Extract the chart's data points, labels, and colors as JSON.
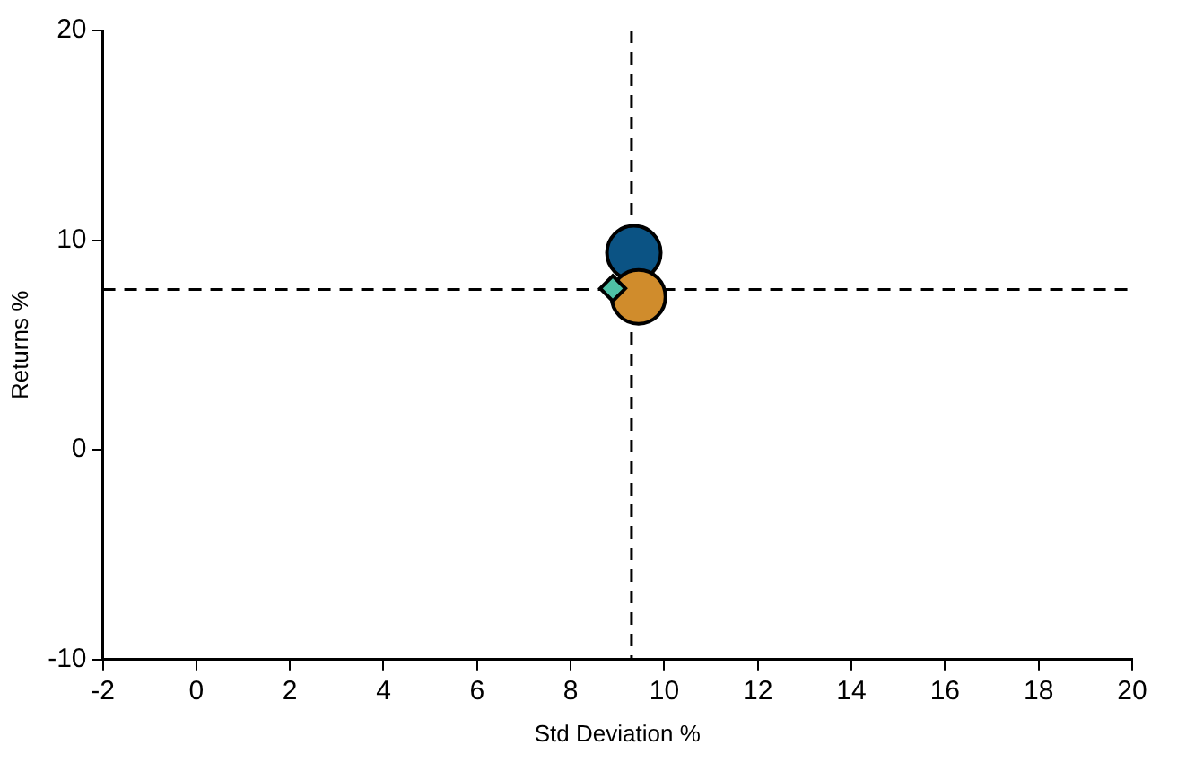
{
  "chart_data": {
    "type": "scatter",
    "xlabel": "Std Deviation %",
    "ylabel": "Returns %",
    "xlim": [
      -2,
      20
    ],
    "xticks": [
      -2,
      0,
      2,
      4,
      6,
      8,
      10,
      12,
      14,
      16,
      18,
      20
    ],
    "ylim": [
      -10,
      20
    ],
    "yticks": [
      -10,
      0,
      10,
      20
    ],
    "grid": false,
    "legend": false,
    "series": [
      {
        "color": "#4fc1a6",
        "marker": "diamond",
        "x": [
          8.9
        ],
        "values": [
          7.7
        ]
      },
      {
        "color": "#d08c2c",
        "marker": "circle",
        "x": [
          9.45
        ],
        "values": [
          7.3
        ]
      },
      {
        "color": "#0b5384",
        "marker": "circle",
        "x": [
          9.35
        ],
        "values": [
          9.4
        ]
      }
    ],
    "ref_lines": [
      {
        "axis": "x",
        "value": 9.3,
        "line_style": "dashed",
        "color": "#000000"
      },
      {
        "axis": "y",
        "value": 7.65,
        "line_style": "dashed",
        "color": "#000000"
      }
    ]
  }
}
